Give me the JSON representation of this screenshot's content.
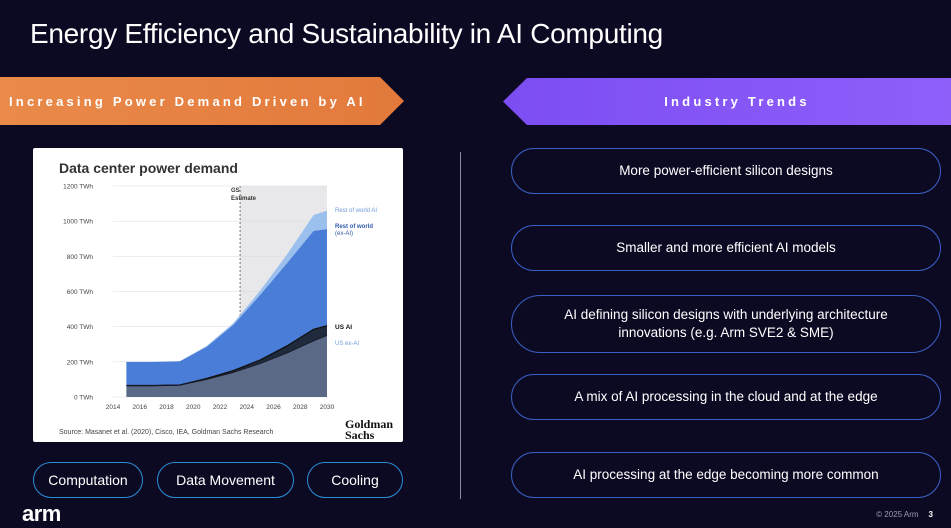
{
  "title": "Energy Efficiency and Sustainability in AI Computing",
  "left_banner": "Increasing Power Demand Driven by AI",
  "right_banner": "Industry Trends",
  "chart": {
    "heading": "Data center power demand",
    "estimate_label_1": "GS",
    "estimate_label_2": "Estimate",
    "source": "Source: Masanet et al. (2020), Cisco, IEA, Goldman Sachs Research",
    "brand_1": "Goldman",
    "brand_2": "Sachs",
    "series_labels": {
      "rest_world_ai": "Rest of world AI",
      "rest_world_ex_1": "Rest of world",
      "rest_world_ex_2": "(ex-AI)",
      "us_ai": "US AI",
      "us_ex_ai": "US ex-AI"
    }
  },
  "chart_data": {
    "type": "area",
    "title": "Data center power demand",
    "x": [
      2015,
      2017,
      2019,
      2021,
      2023,
      2025,
      2027,
      2029,
      2030
    ],
    "x_ticks": [
      "2014",
      "2016",
      "2018",
      "2020",
      "2022",
      "2024",
      "2026",
      "2028",
      "2030"
    ],
    "y_ticks": [
      "0 TWh",
      "200 TWh",
      "400 TWh",
      "600 TWh",
      "800 TWh",
      "1000 TWh",
      "1200 TWh"
    ],
    "ylim": [
      0,
      1200
    ],
    "xlim": [
      2014,
      2030
    ],
    "estimate_start": 2023.5,
    "series": [
      {
        "name": "US ex-AI",
        "values": [
          65,
          65,
          68,
          100,
          140,
          190,
          250,
          320,
          350
        ]
      },
      {
        "name": "US AI",
        "values": [
          0,
          0,
          0,
          5,
          10,
          20,
          40,
          65,
          55
        ]
      },
      {
        "name": "Rest of world (ex-AI)",
        "values": [
          135,
          135,
          135,
          180,
          260,
          370,
          470,
          560,
          550
        ]
      },
      {
        "name": "Rest of world AI",
        "values": [
          0,
          0,
          0,
          5,
          10,
          25,
          50,
          90,
          105
        ]
      }
    ],
    "colors": {
      "us_ex_ai": "#5a6a86",
      "us_ai": "#1f2a3c",
      "rest_world_ex_ai": "#4a7dd8",
      "rest_world_ai": "#9cc0ee",
      "estimate_shade": "#e8e8ea"
    }
  },
  "bottom_pills": [
    "Computation",
    "Data Movement",
    "Cooling"
  ],
  "trends": [
    "More power-efficient silicon designs",
    "Smaller and more efficient AI models",
    "AI defining silicon designs with underlying architecture innovations (e.g. Arm SVE2 & SME)",
    "A mix of AI processing in the cloud and at the edge",
    "AI processing at the edge becoming more common"
  ],
  "logo": "arm",
  "footer": {
    "copyright": "© 2025 Arm",
    "page": "3"
  }
}
